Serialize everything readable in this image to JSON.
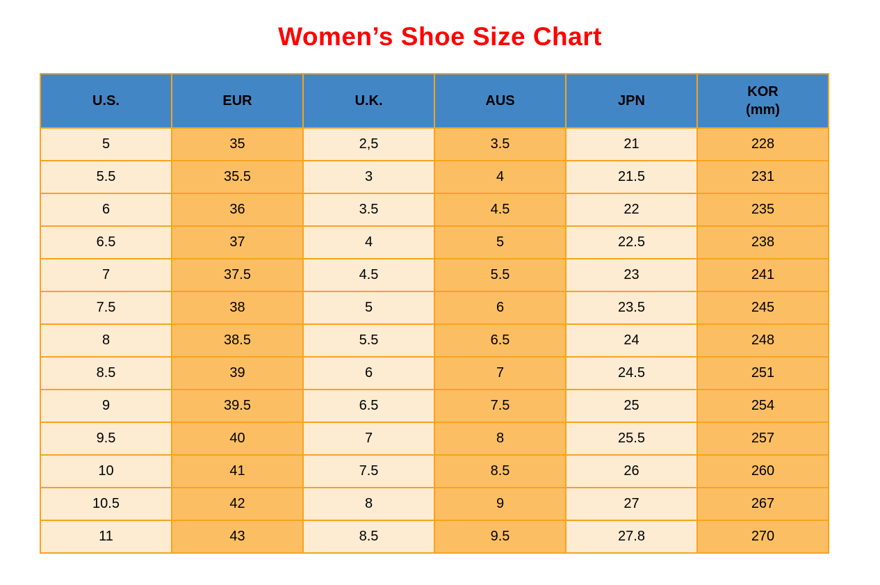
{
  "title": {
    "text": "Women’s Shoe Size Chart"
  },
  "colors": {
    "title_red": "#FF0000",
    "header_blue": "#4386C6",
    "cell_cream": "#FDEBD2",
    "cell_orange": "#FCBE63",
    "grid_orange": "#F8A31C",
    "text_black": "#000000"
  },
  "table": {
    "headers": [
      {
        "label": "U.S.",
        "sub": ""
      },
      {
        "label": "EUR",
        "sub": ""
      },
      {
        "label": "U.K.",
        "sub": ""
      },
      {
        "label": "AUS",
        "sub": ""
      },
      {
        "label": "JPN",
        "sub": ""
      },
      {
        "label": "KOR",
        "sub": "(mm)"
      }
    ],
    "column_styles": [
      "cream",
      "orange",
      "cream",
      "orange",
      "cream",
      "orange"
    ]
  },
  "chart_data": {
    "type": "table",
    "title": "Women’s Shoe Size Chart",
    "columns": [
      "U.S.",
      "EUR",
      "U.K.",
      "AUS",
      "JPN",
      "KOR (mm)"
    ],
    "rows": [
      [
        "5",
        "35",
        "2,5",
        "3.5",
        "21",
        "228"
      ],
      [
        "5.5",
        "35.5",
        "3",
        "4",
        "21.5",
        "231"
      ],
      [
        "6",
        "36",
        "3.5",
        "4.5",
        "22",
        "235"
      ],
      [
        "6.5",
        "37",
        "4",
        "5",
        "22.5",
        "238"
      ],
      [
        "7",
        "37.5",
        "4.5",
        "5.5",
        "23",
        "241"
      ],
      [
        "7.5",
        "38",
        "5",
        "6",
        "23.5",
        "245"
      ],
      [
        "8",
        "38.5",
        "5.5",
        "6.5",
        "24",
        "248"
      ],
      [
        "8.5",
        "39",
        "6",
        "7",
        "24.5",
        "251"
      ],
      [
        "9",
        "39.5",
        "6.5",
        "7.5",
        "25",
        "254"
      ],
      [
        "9.5",
        "40",
        "7",
        "8",
        "25.5",
        "257"
      ],
      [
        "10",
        "41",
        "7.5",
        "8.5",
        "26",
        "260"
      ],
      [
        "10.5",
        "42",
        "8",
        "9",
        "27",
        "267"
      ],
      [
        "11",
        "43",
        "8.5",
        "9.5",
        "27.8",
        "270"
      ]
    ]
  }
}
